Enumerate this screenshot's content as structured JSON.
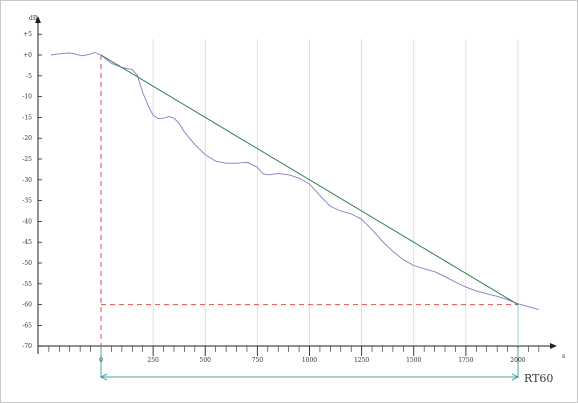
{
  "chart_data": {
    "type": "line",
    "ylabel": "dB",
    "xlabel": "s",
    "xlim": [
      -250,
      2150
    ],
    "ylim": [
      -70,
      7
    ],
    "x_ticks": [
      0,
      250,
      500,
      750,
      1000,
      1250,
      1500,
      1750,
      2000
    ],
    "x_tick_labels": [
      "0",
      "250",
      "500",
      "750",
      "1000",
      "1250",
      "1500",
      "1750",
      "2000"
    ],
    "y_ticks": [
      5,
      0,
      -5,
      -10,
      -15,
      -20,
      -25,
      -30,
      -35,
      -40,
      -45,
      -50,
      -55,
      -60,
      -65,
      -70
    ],
    "y_tick_labels": [
      "+5",
      "+0",
      "-5",
      "-10",
      "-15",
      "-20",
      "-25",
      "-30",
      "-35",
      "-40",
      "-45",
      "-50",
      "-55",
      "-60",
      "-65",
      "-70"
    ],
    "vertical_grid": true,
    "horizontal_grid": false,
    "series": [
      {
        "color": "#7b7fc4",
        "x": [
          -240,
          -200,
          -150,
          -120,
          -90,
          -60,
          -30,
          0,
          50,
          100,
          150,
          175,
          200,
          225,
          250,
          275,
          300,
          325,
          350,
          375,
          400,
          450,
          500,
          550,
          600,
          650,
          700,
          750,
          775,
          800,
          850,
          900,
          950,
          1000,
          1050,
          1100,
          1150,
          1200,
          1250,
          1300,
          1350,
          1400,
          1450,
          1500,
          1550,
          1600,
          1650,
          1700,
          1750,
          1800,
          1850,
          1900,
          1950,
          2000,
          2050,
          2100
        ],
        "y": [
          0,
          0.3,
          0.5,
          0.2,
          -0.2,
          0.1,
          0.6,
          0,
          -2,
          -3,
          -3.5,
          -5,
          -9,
          -12,
          -14.5,
          -15.3,
          -15.2,
          -14.8,
          -15.2,
          -16.5,
          -18.5,
          -21.5,
          -24,
          -25.5,
          -26,
          -26,
          -25.8,
          -27,
          -28.5,
          -28.8,
          -28.5,
          -28.8,
          -29.6,
          -31,
          -33.8,
          -36.4,
          -37.5,
          -38.2,
          -39.5,
          -42,
          -44.8,
          -47.2,
          -49.2,
          -50.6,
          -51.4,
          -52.1,
          -53.3,
          -54.6,
          -55.8,
          -56.7,
          -57.4,
          -58,
          -58.8,
          -59.8,
          -60.5,
          -61.2
        ]
      },
      {
        "color": "#2e7d4f",
        "x": [
          0,
          2000
        ],
        "y": [
          0,
          -60
        ]
      }
    ],
    "reference_lines": {
      "start_x": 0,
      "level_y": -60,
      "end_x": 2000,
      "color": "#d9534f"
    },
    "span": {
      "from_x": 0,
      "to_x": 2000,
      "label": "RT60",
      "color": "#4aa7a7"
    }
  }
}
